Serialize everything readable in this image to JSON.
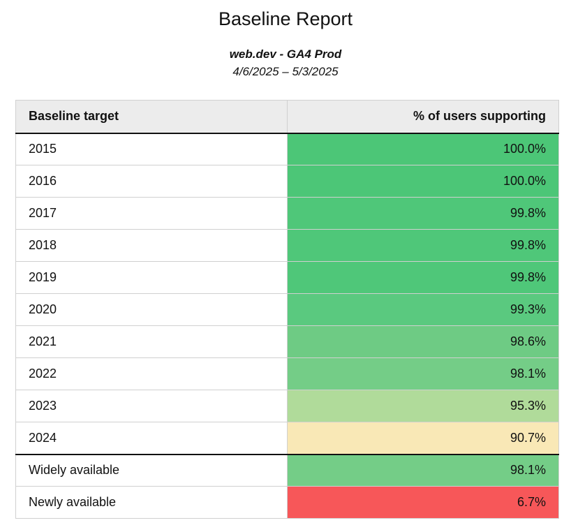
{
  "report": {
    "title": "Baseline Report",
    "property": "web.dev - GA4 Prod",
    "date_range": "4/6/2025 – 5/3/2025"
  },
  "table": {
    "headers": [
      "Baseline target",
      "% of users supporting"
    ],
    "rows": [
      {
        "label": "2015",
        "value": "100.0%",
        "color": "#4cc677"
      },
      {
        "label": "2016",
        "value": "100.0%",
        "color": "#4cc677"
      },
      {
        "label": "2017",
        "value": "99.8%",
        "color": "#4fc779"
      },
      {
        "label": "2018",
        "value": "99.8%",
        "color": "#4fc779"
      },
      {
        "label": "2019",
        "value": "99.8%",
        "color": "#4fc779"
      },
      {
        "label": "2020",
        "value": "99.3%",
        "color": "#5ac97f"
      },
      {
        "label": "2021",
        "value": "98.6%",
        "color": "#6ecb84"
      },
      {
        "label": "2022",
        "value": "98.1%",
        "color": "#74cd87"
      },
      {
        "label": "2023",
        "value": "95.3%",
        "color": "#b0db9a"
      },
      {
        "label": "2024",
        "value": "90.7%",
        "color": "#f9e8b6"
      }
    ],
    "summary_rows": [
      {
        "label": "Widely available",
        "value": "98.1%",
        "color": "#74cd87"
      },
      {
        "label": "Newly available",
        "value": "6.7%",
        "color": "#f75759"
      }
    ]
  }
}
